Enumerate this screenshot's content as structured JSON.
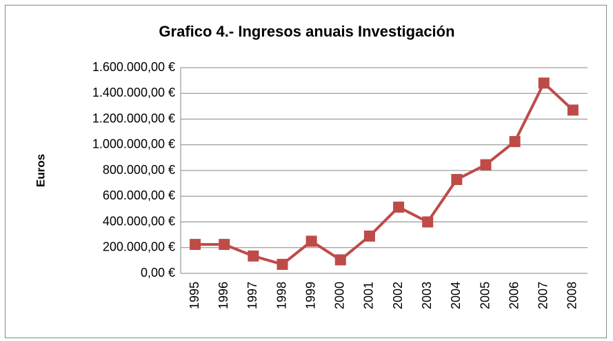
{
  "chart_data": {
    "type": "line",
    "title": "Grafico 4.- Ingresos anuais Investigación",
    "y_label": "Euros",
    "categories": [
      "1995",
      "1996",
      "1997",
      "1998",
      "1999",
      "2000",
      "2001",
      "2002",
      "2003",
      "2004",
      "2005",
      "2006",
      "2007",
      "2008"
    ],
    "values": [
      225000,
      225000,
      135000,
      70000,
      250000,
      105000,
      290000,
      515000,
      400000,
      730000,
      845000,
      1025000,
      1480000,
      1270000
    ],
    "color": "#be4b48",
    "ylim": [
      0,
      1600000
    ],
    "yticks": [
      {
        "value": 0,
        "label": "0,00 €"
      },
      {
        "value": 200000,
        "label": "200.000,00 €"
      },
      {
        "value": 400000,
        "label": "400.000,00 €"
      },
      {
        "value": 600000,
        "label": "600.000,00 €"
      },
      {
        "value": 800000,
        "label": "800.000,00 €"
      },
      {
        "value": 1000000,
        "label": "1.000.000,00 €"
      },
      {
        "value": 1200000,
        "label": "1.200.000,00 €"
      },
      {
        "value": 1400000,
        "label": "1.400.000,00 €"
      },
      {
        "value": 1600000,
        "label": "1.600.000,00 €"
      }
    ],
    "grid": true
  }
}
